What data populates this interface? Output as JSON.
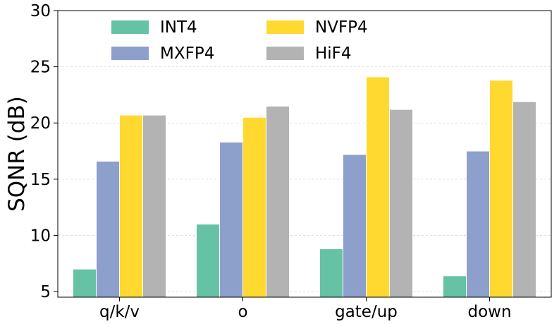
{
  "chart_data": {
    "type": "bar",
    "title": "",
    "xlabel": "",
    "ylabel": "SQNR (dB)",
    "ylim": [
      4.5,
      30
    ],
    "yticks": [
      5,
      10,
      15,
      20,
      25,
      30
    ],
    "grid": "y-dashed",
    "legend_position": "top",
    "categories": [
      "q/k/v",
      "o",
      "gate/up",
      "down"
    ],
    "series": [
      {
        "name": "INT4",
        "color": "#66c2a5",
        "values": [
          7.0,
          11.0,
          8.8,
          6.4
        ]
      },
      {
        "name": "MXFP4",
        "color": "#8da0cb",
        "values": [
          16.6,
          18.3,
          17.2,
          17.5
        ]
      },
      {
        "name": "NVFP4",
        "color": "#ffd92f",
        "values": [
          20.7,
          20.5,
          24.1,
          23.8
        ]
      },
      {
        "name": "HiF4",
        "color": "#b3b3b3",
        "values": [
          20.7,
          21.5,
          21.2,
          21.9
        ]
      }
    ]
  }
}
